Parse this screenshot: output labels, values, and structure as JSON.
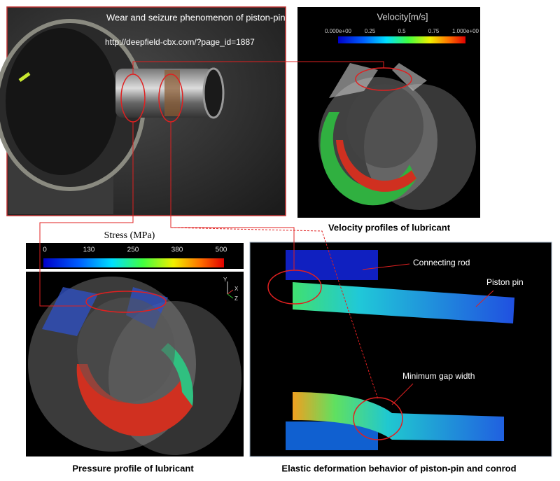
{
  "photo": {
    "caption": "Wear and seizure phenomenon of piston-pin",
    "url": "http://deepfield-cbx.com/?page_id=1887"
  },
  "velocity_panel": {
    "title": "Velocity[m/s]",
    "colorbar_ticks": [
      "0.000e+00",
      "0.25",
      "0.5",
      "0.75",
      "1.000e+00"
    ],
    "caption": "Velocity profiles of lubricant"
  },
  "pressure_panel": {
    "title": "Stress (MPa)",
    "colorbar_ticks": [
      "0",
      "130",
      "250",
      "380",
      "500"
    ],
    "axes": [
      "Y",
      "X",
      "Z"
    ],
    "caption": "Pressure profile of lubricant"
  },
  "deformation_panel": {
    "labels": [
      "Connecting rod",
      "Piston pin",
      "Minimum gap width"
    ],
    "caption": "Elastic deformation behavior of piston-pin and conrod"
  }
}
